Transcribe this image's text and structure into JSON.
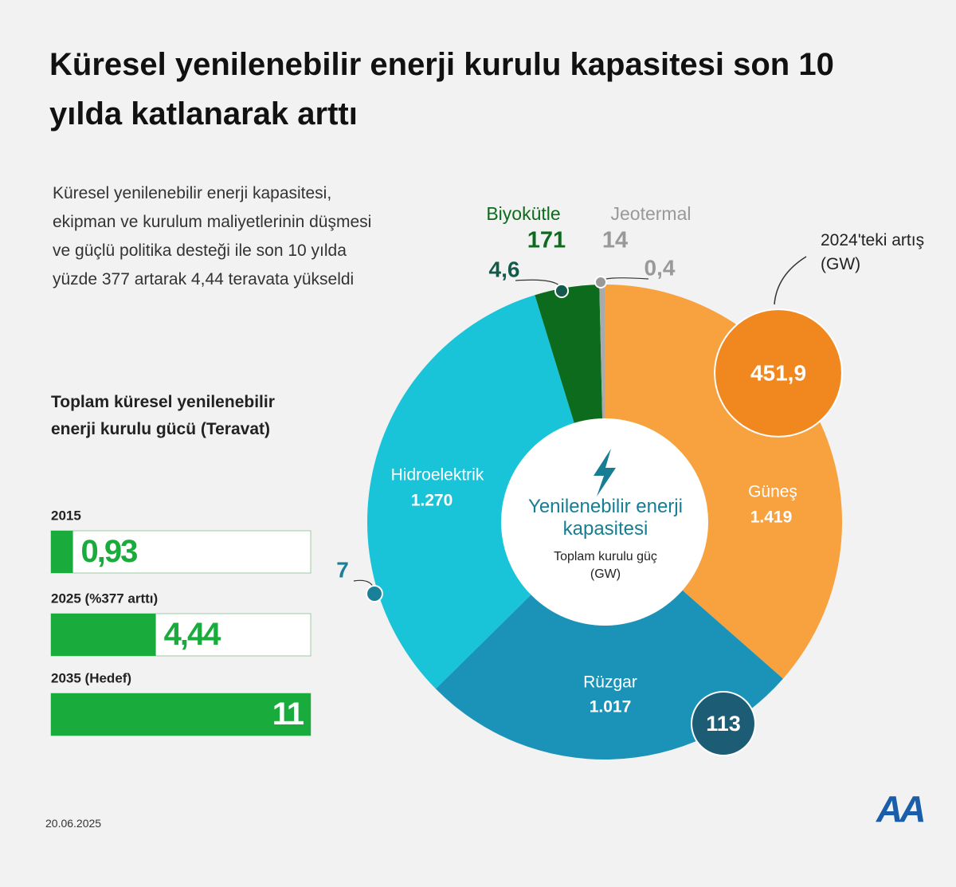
{
  "title": "Küresel yenilenebilir enerji kurulu kapasitesi son 10 yılda katlanarak arttı",
  "description": "Küresel yenilenebilir enerji kapasitesi, ekipman ve kurulum maliyetlerinin düşmesi ve güçlü politika desteği ile son 10 yılda yüzde 377 artarak 4,44 teravata yükseldi",
  "date": "20.06.2025",
  "logo": "AA",
  "chart_data": [
    {
      "type": "donut",
      "center_title": "Yenilenebilir enerji kapasitesi",
      "center_subtitle": "Toplam kurulu güç (GW)",
      "categories": [
        "Güneş",
        "Rüzgar",
        "Hidroelektrik",
        "Biyokütle",
        "Jeotermal"
      ],
      "values": [
        1419,
        1017,
        1270,
        171,
        14
      ],
      "value_labels": [
        "1.419",
        "1.017",
        "1.270",
        "171",
        "14"
      ],
      "colors": [
        "#f7a23e",
        "#1b93b8",
        "#19c4d9",
        "#0d6b1e",
        "#aaaaaa"
      ],
      "increase_label": "2024'teki artış (GW)",
      "increases": [
        451.9,
        113,
        7,
        4.6,
        0.4
      ],
      "increase_labels": [
        "451,9",
        "113",
        "7",
        "4,6",
        "0,4"
      ],
      "increase_colors": [
        "#f0881f",
        "#1d5c75",
        "#1a7f99",
        "#145a4a",
        "#999999"
      ]
    },
    {
      "type": "bar",
      "title": "Toplam küresel yenilenebilir enerji kurulu gücü (Teravat)",
      "categories": [
        "2015",
        "2025 (%377 arttı)",
        "2035 (Hedef)"
      ],
      "values": [
        0.93,
        4.44,
        11
      ],
      "value_labels": [
        "0,93",
        "4,44",
        "11"
      ],
      "xlim": [
        0,
        11
      ],
      "color": "#1aab3d"
    }
  ]
}
